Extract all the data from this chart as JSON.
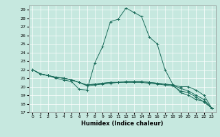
{
  "xlabel": "Humidex (Indice chaleur)",
  "ylabel": "",
  "xlim": [
    -0.5,
    23.5
  ],
  "ylim": [
    17,
    29.5
  ],
  "xticks": [
    0,
    1,
    2,
    3,
    4,
    5,
    6,
    7,
    8,
    9,
    10,
    11,
    12,
    13,
    14,
    15,
    16,
    17,
    18,
    19,
    20,
    21,
    22,
    23
  ],
  "yticks": [
    17,
    18,
    19,
    20,
    21,
    22,
    23,
    24,
    25,
    26,
    27,
    28,
    29
  ],
  "bg_color": "#c6e8df",
  "line_color": "#1a6b5a",
  "series": [
    {
      "x": [
        0,
        1,
        2,
        3,
        4,
        5,
        6,
        7,
        8,
        9,
        10,
        11,
        12,
        13,
        14,
        15,
        16,
        17,
        18,
        19,
        20,
        21,
        22,
        23
      ],
      "y": [
        22.0,
        21.5,
        21.3,
        21.0,
        20.8,
        20.6,
        19.7,
        19.6,
        22.8,
        24.7,
        27.6,
        27.9,
        29.2,
        28.7,
        28.2,
        25.8,
        25.0,
        22.0,
        20.3,
        19.3,
        19.0,
        18.5,
        18.3,
        17.5
      ]
    },
    {
      "x": [
        0,
        1,
        2,
        3,
        4,
        5,
        6,
        7,
        8,
        9,
        10,
        11,
        12,
        13,
        14,
        15,
        16,
        17,
        18,
        19,
        20,
        21,
        22,
        23
      ],
      "y": [
        22.0,
        21.5,
        21.3,
        21.1,
        21.0,
        20.8,
        20.5,
        20.2,
        20.3,
        20.4,
        20.5,
        20.5,
        20.6,
        20.6,
        20.6,
        20.5,
        20.4,
        20.3,
        20.2,
        20.0,
        20.0,
        19.6,
        19.0,
        17.5
      ]
    },
    {
      "x": [
        0,
        1,
        2,
        3,
        4,
        5,
        6,
        7,
        8,
        9,
        10,
        11,
        12,
        13,
        14,
        15,
        16,
        17,
        18,
        19,
        20,
        21,
        22,
        23
      ],
      "y": [
        22.0,
        21.5,
        21.3,
        21.1,
        21.0,
        20.8,
        20.5,
        20.2,
        20.3,
        20.4,
        20.5,
        20.5,
        20.6,
        20.6,
        20.6,
        20.5,
        20.4,
        20.3,
        20.2,
        19.8,
        19.5,
        19.0,
        18.5,
        17.5
      ]
    },
    {
      "x": [
        0,
        1,
        2,
        3,
        4,
        5,
        6,
        7,
        8,
        9,
        10,
        11,
        12,
        13,
        14,
        15,
        16,
        17,
        18,
        19,
        20,
        21,
        22,
        23
      ],
      "y": [
        22.0,
        21.5,
        21.3,
        21.1,
        21.0,
        20.8,
        20.5,
        20.1,
        20.2,
        20.3,
        20.4,
        20.5,
        20.5,
        20.5,
        20.5,
        20.4,
        20.3,
        20.2,
        20.1,
        19.5,
        19.3,
        18.8,
        18.2,
        17.5
      ]
    }
  ]
}
